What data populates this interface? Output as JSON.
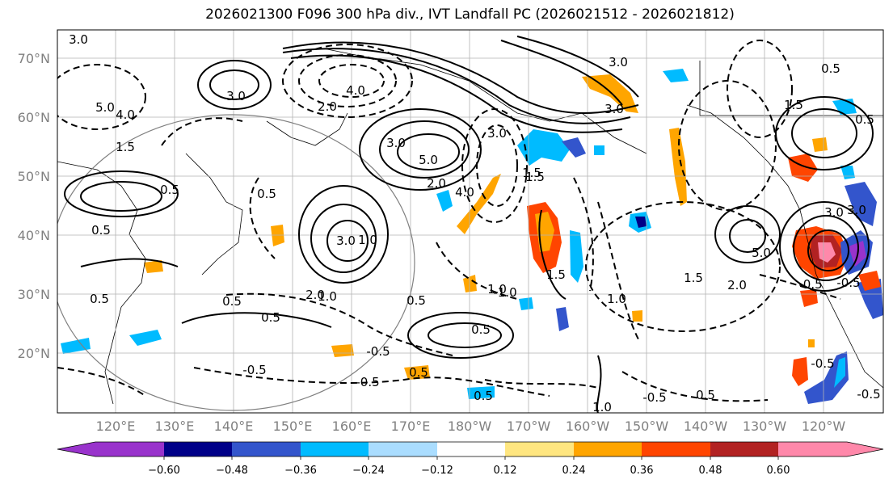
{
  "title": "2026021300 F096 300 hPa div., IVT Landfall PC (2026021512 - 2026021812)",
  "lat_labels": [
    "70°N",
    "60°N",
    "50°N",
    "40°N",
    "30°N",
    "20°N"
  ],
  "lon_labels": [
    "120°E",
    "130°E",
    "140°E",
    "150°E",
    "160°E",
    "170°E",
    "180°W",
    "170°W",
    "160°W",
    "150°W",
    "140°W",
    "130°W",
    "120°W"
  ],
  "colorbar": {
    "colors": [
      "#9933cc",
      "#000088",
      "#3355cc",
      "#00bbff",
      "#aaddff",
      "#ffffff",
      "#ffe680",
      "#ffa500",
      "#ff4500",
      "#b22222",
      "#ff88aa"
    ],
    "ticks": [
      "−0.60",
      "−0.48",
      "−0.36",
      "−0.24",
      "−0.12",
      "0.12",
      "0.24",
      "0.36",
      "0.48",
      "0.60"
    ]
  },
  "contour_labels": [
    "3.0",
    "5.0",
    "4.0",
    "2.0",
    "1.5",
    "3.0",
    "4.0",
    "3.0",
    "3.0",
    "5.0",
    "2.0",
    "1.5",
    "1.5",
    "1.0",
    "0.5",
    "0.5",
    "0.5",
    "0.5",
    "0.5",
    "-0.5",
    "1.0",
    "-0.5",
    "0.5",
    "1.0",
    "0.5",
    "3.0",
    "5.0",
    "2.0",
    "1.0",
    "1.5",
    "-0.5",
    "-0.5",
    "0.5",
    "-1.0",
    "-0.5",
    "0.5",
    "0.5",
    "1.0",
    "2.0",
    "0.5",
    "-0.5",
    "3.0",
    "1.5",
    "3.0",
    "-0.5",
    "0.5",
    "-0.5",
    "4.0",
    "3.0",
    "3.0",
    "1.5",
    "0.5"
  ]
}
